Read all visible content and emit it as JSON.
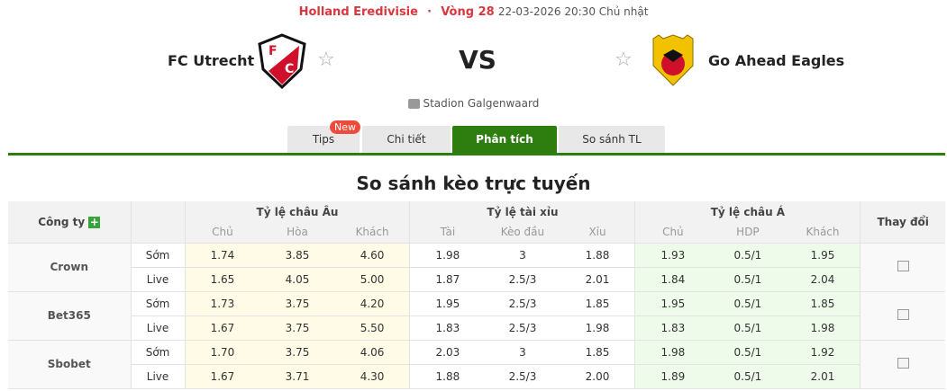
{
  "header": {
    "league": "Holland Eredivisie",
    "separator": "·",
    "round": "Vòng 28",
    "datetime": "22-03-2026 20:30 Chủ nhật"
  },
  "match": {
    "home": "FC Utrecht",
    "away": "Go Ahead Eagles",
    "vs": "VS",
    "stadium": "Stadion Galgenwaard"
  },
  "tabs": [
    {
      "label": "Tips",
      "badge": "New"
    },
    {
      "label": "Chi tiết"
    },
    {
      "label": "Phân tích",
      "active": true
    },
    {
      "label": "So sánh TL"
    }
  ],
  "section_title": "So sánh kèo trực tuyến",
  "table": {
    "company_header": "Công ty",
    "groups": [
      "Tỷ lệ châu Âu",
      "Tỷ lệ tài xỉu",
      "Tỷ lệ châu Á",
      "Thay đổi"
    ],
    "sub_headers": [
      "Chủ",
      "Hòa",
      "Khách",
      "Tài",
      "Kèo đầu",
      "Xỉu",
      "Chủ",
      "HDP",
      "Khách"
    ],
    "rows": [
      {
        "company": "Crown",
        "lines": [
          {
            "type": "Sớm",
            "v": [
              "1.74",
              "3.85",
              "4.60",
              "1.98",
              "3",
              "1.88",
              "1.93",
              "0.5/1",
              "1.95"
            ]
          },
          {
            "type": "Live",
            "v": [
              "1.65",
              "4.05",
              "5.00",
              "1.87",
              "2.5/3",
              "2.01",
              "1.84",
              "0.5/1",
              "2.04"
            ]
          }
        ]
      },
      {
        "company": "Bet365",
        "lines": [
          {
            "type": "Sớm",
            "v": [
              "1.73",
              "3.75",
              "4.20",
              "1.95",
              "2.5/3",
              "1.85",
              "1.95",
              "0.5/1",
              "1.85"
            ]
          },
          {
            "type": "Live",
            "v": [
              "1.67",
              "3.75",
              "5.50",
              "1.83",
              "2.5/3",
              "1.98",
              "1.83",
              "0.5/1",
              "1.98"
            ]
          }
        ]
      },
      {
        "company": "Sbobet",
        "lines": [
          {
            "type": "Sớm",
            "v": [
              "1.70",
              "3.75",
              "4.06",
              "2.03",
              "3",
              "1.85",
              "1.98",
              "0.5/1",
              "1.92"
            ]
          },
          {
            "type": "Live",
            "v": [
              "1.67",
              "3.71",
              "4.30",
              "1.88",
              "2.5/3",
              "2.00",
              "1.89",
              "0.5/1",
              "2.01"
            ]
          }
        ]
      }
    ]
  },
  "colors": {
    "accent": "#2e7d0f",
    "league": "#d9363e"
  }
}
